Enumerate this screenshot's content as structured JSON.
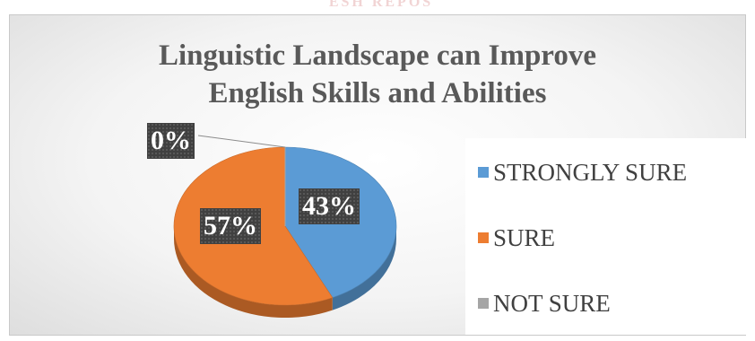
{
  "watermark": "ESH REPOS",
  "chart_data": {
    "type": "pie",
    "title_lines": [
      "Linguistic Landscape can Improve",
      "English Skills and Abilities"
    ],
    "categories": [
      "STRONGLY SURE",
      "SURE",
      "NOT SURE"
    ],
    "values": [
      43,
      57,
      0
    ],
    "data_labels": [
      "43%",
      "57%",
      "0%"
    ],
    "colors": [
      "#5b9bd5",
      "#ed7d31",
      "#a5a5a5"
    ],
    "legend_position": "right",
    "style": "3d"
  }
}
